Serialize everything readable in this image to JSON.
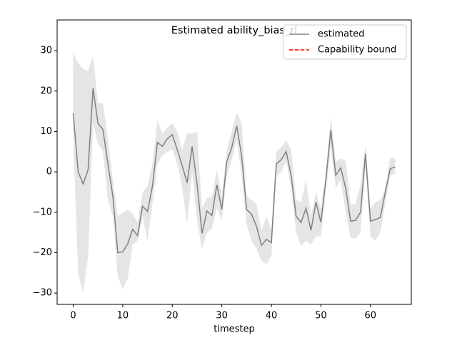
{
  "chart_data": {
    "type": "line",
    "title": "Estimated ability_bias_rl",
    "x_label": "timestep",
    "x": [
      0,
      1,
      2,
      3,
      4,
      5,
      6,
      7,
      8,
      9,
      10,
      11,
      12,
      13,
      14,
      15,
      16,
      17,
      18,
      19,
      20,
      21,
      22,
      23,
      24,
      25,
      26,
      27,
      28,
      29,
      30,
      31,
      32,
      33,
      34,
      35,
      36,
      37,
      38,
      39,
      40,
      41,
      42,
      43,
      44,
      45,
      46,
      47,
      48,
      49,
      50,
      51,
      52,
      53,
      54,
      55,
      56,
      57,
      58,
      59,
      60,
      61,
      62,
      63,
      64,
      65
    ],
    "series": [
      {
        "name": "estimated",
        "color": "#808080",
        "style": "solid",
        "values": [
          14.5,
          0,
          -3,
          0.5,
          20.7,
          12,
          10.5,
          2,
          -6,
          -20,
          -19.8,
          -17.8,
          -14.2,
          -15.8,
          -8.5,
          -9.8,
          -3.5,
          7.3,
          6.3,
          8.2,
          9.2,
          5.5,
          1.5,
          -2.7,
          6.3,
          -3,
          -15.2,
          -9.7,
          -10.8,
          -3.2,
          -9.3,
          2.5,
          6,
          11.4,
          4,
          -9.3,
          -10.5,
          -13.5,
          -18.2,
          -16.7,
          -17.5,
          2,
          3,
          5,
          -1,
          -11,
          -12.5,
          -9,
          -14.5,
          -7.5,
          -12.5,
          -2,
          10.3,
          -0.8,
          1,
          -4,
          -12.2,
          -12,
          -10,
          4.5,
          -12.2,
          -11.8,
          -11.3,
          -5,
          0.8,
          1.2
        ],
        "upper": [
          29.4,
          27,
          25.5,
          25,
          28.7,
          17,
          17,
          8,
          -2,
          -11,
          -10,
          -9.3,
          -10.5,
          -12.5,
          -5,
          -3.5,
          2,
          12.7,
          9.5,
          11,
          12,
          10,
          5.5,
          9.5,
          9.5,
          10,
          -9,
          -6.5,
          -6,
          0.5,
          -6,
          5.5,
          10,
          14.8,
          12,
          -6,
          -7,
          -8,
          -14.5,
          -11,
          -14.5,
          5,
          6,
          7.8,
          5.5,
          -7,
          -7.5,
          -2,
          -11,
          -5,
          -9,
          0,
          13.8,
          2.5,
          3.3,
          2.8,
          -8,
          -8,
          -3,
          6.8,
          -9,
          -7.5,
          -7,
          -4,
          3.5,
          3.3
        ],
        "lower": [
          8,
          -25,
          -30,
          -21,
          12,
          7,
          5,
          -7,
          -11,
          -26,
          -29,
          -26.5,
          -18,
          -17,
          -11,
          -17,
          -8,
          2,
          4,
          5,
          5.5,
          2,
          -4,
          -13,
          0,
          -12,
          -19,
          -15,
          -14,
          -9,
          -12,
          -1,
          3,
          8,
          -1,
          -13,
          -17,
          -19,
          -22,
          -22.8,
          -20.8,
          -1,
          0,
          2.5,
          -4,
          -15,
          -18.4,
          -17,
          -18,
          -16,
          -16,
          -5,
          6,
          -4,
          -2,
          -10,
          -16.4,
          -16.5,
          -15,
          1,
          -16,
          -17,
          -15,
          -8,
          -1,
          -0.5
        ],
        "band_color": "#e5e5e5"
      },
      {
        "name": "Capability bound",
        "color": "#ff0000",
        "style": "dashed",
        "values": [
          null,
          null,
          null,
          null,
          null,
          null,
          null,
          null,
          null,
          null,
          null,
          null,
          null,
          null,
          null,
          null,
          null,
          null,
          null,
          null,
          null,
          null,
          null,
          null,
          null,
          null,
          null,
          null,
          null,
          null,
          null,
          null,
          null,
          null,
          null,
          null,
          null,
          null,
          null,
          null,
          null,
          null,
          null,
          null,
          null,
          null,
          null,
          null,
          null,
          null,
          null,
          null,
          null,
          null,
          null,
          null,
          null,
          null,
          null,
          null,
          null,
          null,
          null,
          null,
          null,
          null
        ]
      }
    ],
    "xlim": [
      -3.25,
      68.25
    ],
    "ylim": [
      -32.8,
      37.6
    ],
    "xticks": [
      0,
      10,
      20,
      30,
      40,
      50,
      60
    ],
    "yticks": [
      {
        "value": -30,
        "label": "−30"
      },
      {
        "value": -20,
        "label": "−20"
      },
      {
        "value": -10,
        "label": "−10"
      },
      0,
      10,
      20,
      30
    ],
    "grid": false,
    "legend": "upper right"
  }
}
